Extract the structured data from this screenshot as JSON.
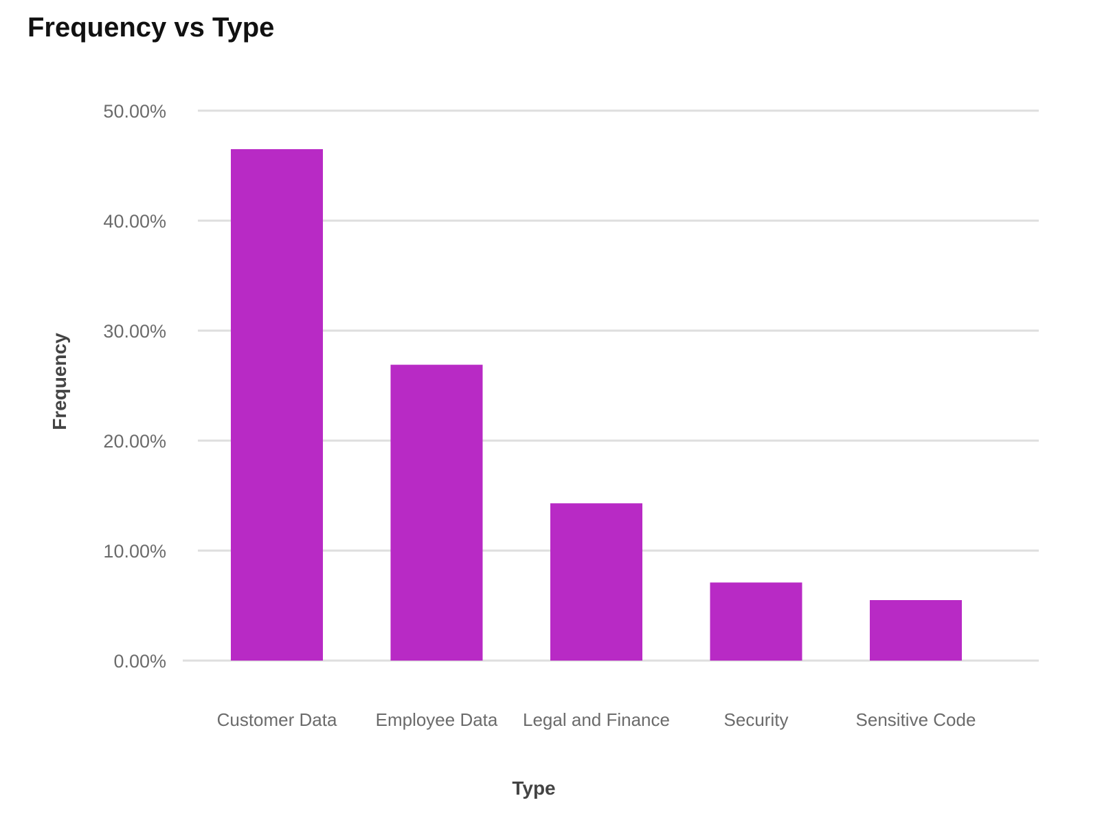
{
  "chart_data": {
    "type": "bar",
    "title": "Frequency vs Type",
    "xlabel": "Type",
    "ylabel": "Frequency",
    "categories": [
      "Customer Data",
      "Employee Data",
      "Legal and Finance",
      "Security",
      "Sensitive Code"
    ],
    "values": [
      46.5,
      26.9,
      14.3,
      7.1,
      5.5
    ],
    "ylim": [
      0,
      50
    ],
    "yticks": [
      0,
      10,
      20,
      30,
      40,
      50
    ],
    "ytick_labels": [
      "0.00%",
      "10.00%",
      "20.00%",
      "30.00%",
      "40.00%",
      "50.00%"
    ],
    "grid": true,
    "bar_color": "#b82ac5"
  }
}
